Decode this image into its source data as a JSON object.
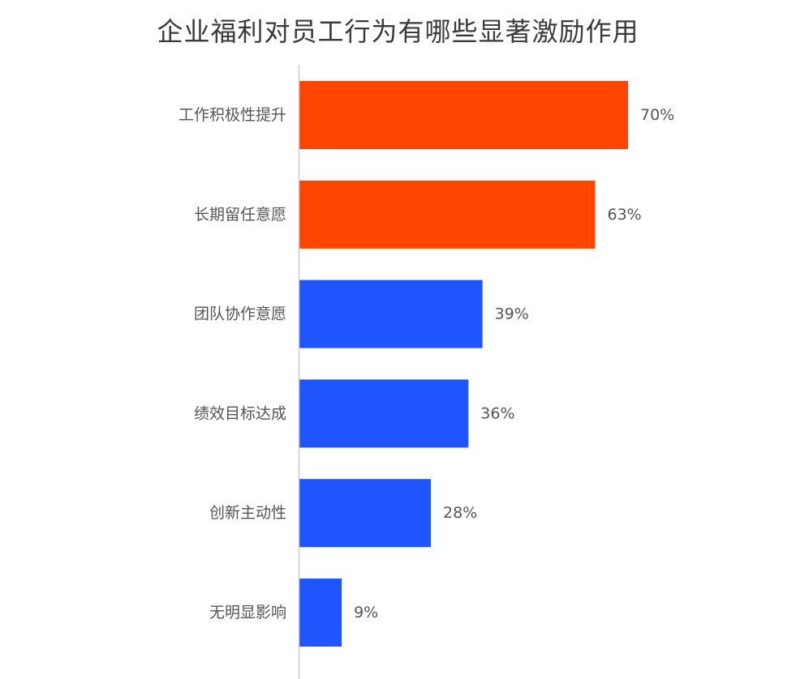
{
  "chart_data": {
    "type": "bar",
    "orientation": "horizontal",
    "title": "企业福利对员工行为有哪些显著激励作用",
    "categories": [
      "工作积极性提升",
      "长期留任意愿",
      "团队协作意愿",
      "绩效目标达成",
      "创新主动性",
      "无明显影响"
    ],
    "values": [
      70,
      63,
      39,
      36,
      28,
      9
    ],
    "value_labels": [
      "70%",
      "63%",
      "39%",
      "36%",
      "28%",
      "9%"
    ],
    "unit": "%",
    "xlim": [
      0,
      70
    ],
    "xlabel": "",
    "ylabel": "",
    "grid": false,
    "legend": "none",
    "colors": {
      "highlight": "#FF4500",
      "default": "#1F55FF",
      "axis": "#cccccc"
    },
    "highlight_count": 2
  }
}
